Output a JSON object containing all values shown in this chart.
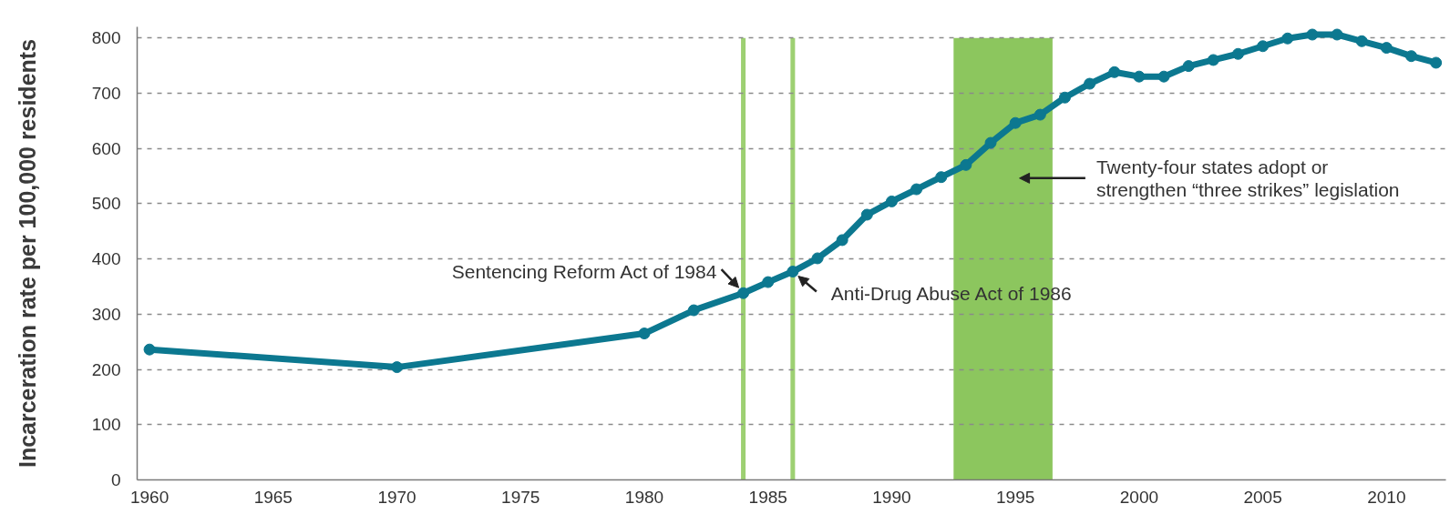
{
  "chart_data": {
    "type": "line",
    "ylabel": "Incarceration rate per 100,000 residents",
    "x": [
      1960,
      1970,
      1980,
      1982,
      1984,
      1985,
      1986,
      1987,
      1988,
      1989,
      1990,
      1991,
      1992,
      1993,
      1994,
      1995,
      1996,
      1997,
      1998,
      1999,
      2000,
      2001,
      2002,
      2003,
      2004,
      2005,
      2006,
      2007,
      2008,
      2009,
      2010,
      2011,
      2012
    ],
    "series": [
      {
        "color": "#0c7890",
        "values": [
          236,
          204,
          265,
          307,
          338,
          358,
          377,
          401,
          434,
          480,
          504,
          526,
          548,
          570,
          610,
          646,
          661,
          692,
          717,
          738,
          730,
          730,
          749,
          760,
          771,
          785,
          799,
          806,
          806,
          794,
          782,
          767,
          755
        ]
      }
    ],
    "xlim": [
      1959.5,
      2012.4
    ],
    "ylim": [
      0,
      820
    ],
    "xticks": [
      1960,
      1965,
      1970,
      1975,
      1980,
      1985,
      1990,
      1995,
      2000,
      2005,
      2010
    ],
    "yticks": [
      0,
      100,
      200,
      300,
      400,
      500,
      600,
      700,
      800
    ],
    "grid": "y",
    "marker": "circle",
    "line_style": "solid",
    "ref_lines": [
      {
        "axis": "x",
        "value": 1984,
        "color": "#9dd072"
      },
      {
        "axis": "x",
        "value": 1986,
        "color": "#9dd072"
      }
    ],
    "bands": [
      {
        "axis": "x",
        "from": 1992.5,
        "to": 1996.5,
        "label": "Twenty-four states adopt or\nstrengthen “three strikes” legislation",
        "color": "#8cc65e"
      }
    ],
    "annotations": [
      {
        "text": "Sentencing Reform Act of 1984",
        "x": 1984,
        "y": 338
      },
      {
        "text": "Anti-Drug Abuse Act of 1986",
        "x": 1986,
        "y": 377
      }
    ]
  }
}
